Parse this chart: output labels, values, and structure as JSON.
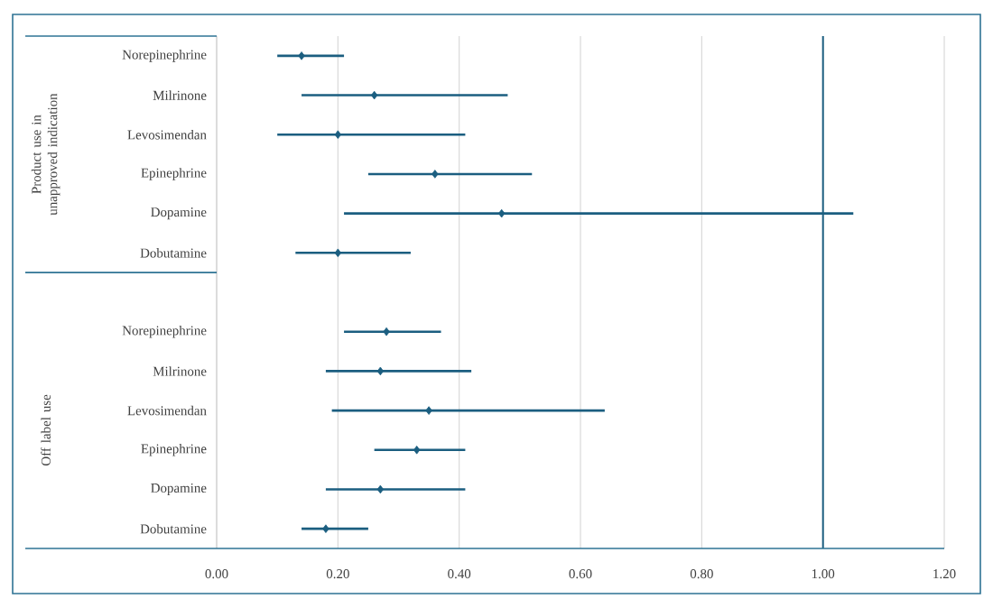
{
  "chart_data": {
    "type": "scatter",
    "orientation": "horizontal",
    "categories": [
      "Norepinephrine",
      "Milrinone",
      "Levosimendan",
      "Epinephrine",
      "Dopamine",
      "Dobutamine",
      null,
      "Norepinephrine",
      "Milrinone",
      "Levosimendan",
      "Epinephrine",
      "Dopamine",
      "Dobutamine"
    ],
    "values": [
      0.14,
      0.26,
      0.2,
      0.36,
      0.47,
      0.2,
      null,
      0.28,
      0.27,
      0.35,
      0.33,
      0.27,
      0.18
    ],
    "errors": [
      [
        0.1,
        0.21
      ],
      [
        0.14,
        0.48
      ],
      [
        0.1,
        0.41
      ],
      [
        0.25,
        0.52
      ],
      [
        0.21,
        1.05
      ],
      [
        0.13,
        0.32
      ],
      null,
      [
        0.21,
        0.37
      ],
      [
        0.18,
        0.42
      ],
      [
        0.19,
        0.64
      ],
      [
        0.26,
        0.41
      ],
      [
        0.18,
        0.41
      ],
      [
        0.14,
        0.25
      ]
    ],
    "color": "#1b5e80",
    "marker": "diamond",
    "xlim": [
      0,
      1.2
    ],
    "xticks": [
      {
        "value": 0,
        "label": "0.00"
      },
      {
        "value": 0.2,
        "label": "0.20"
      },
      {
        "value": 0.4,
        "label": "0.40"
      },
      {
        "value": 0.6,
        "label": "0.60"
      },
      {
        "value": 0.8,
        "label": "0.80"
      },
      {
        "value": 1,
        "label": "1.00"
      },
      {
        "value": 1.2,
        "label": "1.20"
      }
    ],
    "grid": "x",
    "ref_lines": [
      {
        "axis": "x",
        "value": 1,
        "color": "#1b5e80"
      }
    ],
    "annotations": [
      "Product use in unapproved indication",
      "Off label use"
    ]
  }
}
